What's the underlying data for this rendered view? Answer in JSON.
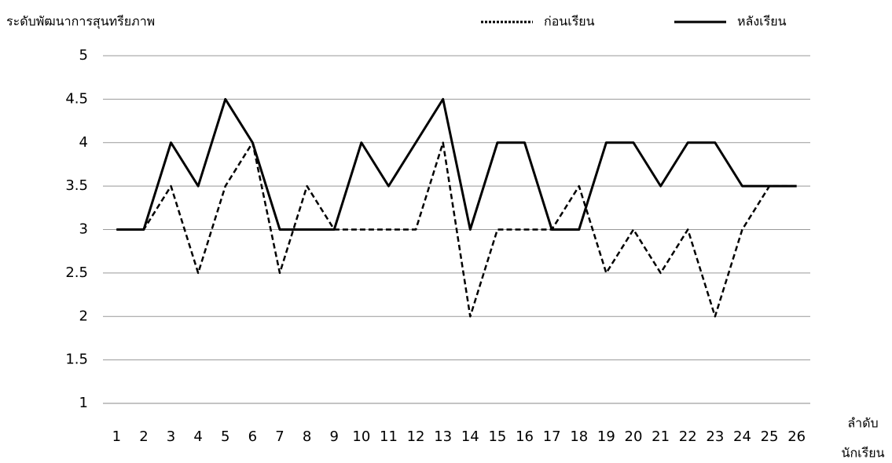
{
  "chart_data": {
    "type": "line",
    "y_label": "ระดับพัฒนาการสุนทรียภาพ",
    "x_label": [
      "ลำดับ",
      "นักเรียน"
    ],
    "categories": [
      "1",
      "2",
      "3",
      "4",
      "5",
      "6",
      "7",
      "8",
      "9",
      "10",
      "11",
      "12",
      "13",
      "14",
      "15",
      "16",
      "17",
      "18",
      "19",
      "20",
      "21",
      "22",
      "23",
      "24",
      "25",
      "26"
    ],
    "series": [
      {
        "name": "ก่อนเรียน",
        "color": "#000000",
        "dash": "dashed",
        "values": [
          3,
          3,
          3.5,
          2.5,
          3.5,
          4,
          2.5,
          3.5,
          3,
          3,
          3,
          3,
          4,
          2,
          3,
          3,
          3,
          3.5,
          2.5,
          3,
          2.5,
          3,
          2,
          3,
          3.5,
          3.5
        ]
      },
      {
        "name": "หลังเรียน",
        "color": "#000000",
        "dash": "solid",
        "values": [
          3,
          3,
          4,
          3.5,
          4.5,
          4,
          3,
          3,
          3,
          4,
          3.5,
          4,
          4.5,
          3,
          4,
          4,
          3,
          3,
          4,
          4,
          3.5,
          4,
          4,
          3.5,
          3.5,
          3.5
        ]
      }
    ],
    "ylim": [
      1,
      5
    ],
    "yticks": [
      1,
      1.5,
      2,
      2.5,
      3,
      3.5,
      4,
      4.5,
      5
    ],
    "grid": true,
    "legend": "top-right"
  }
}
